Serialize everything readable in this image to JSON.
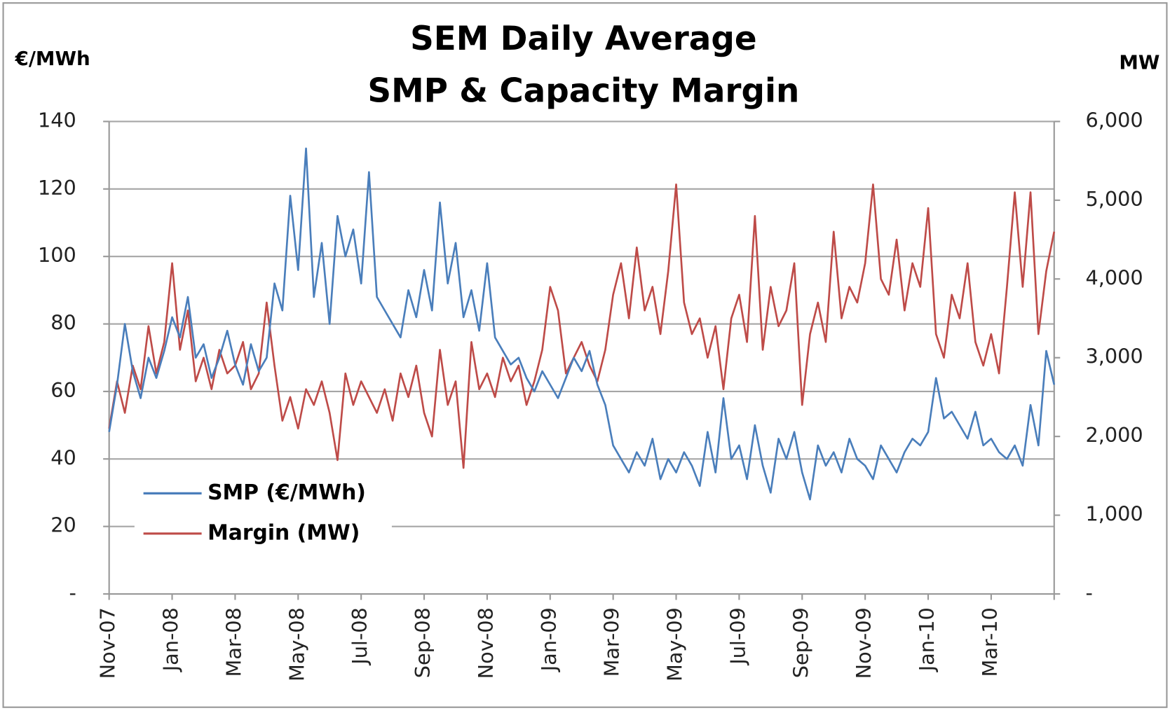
{
  "chart_data": {
    "type": "line",
    "title": [
      "SEM Daily Average",
      "SMP & Capacity Margin"
    ],
    "y_label": "€/MWh",
    "y2_label": "MW",
    "categories": [
      "Nov-07",
      null,
      null,
      null,
      null,
      null,
      null,
      null,
      "Jan-08",
      null,
      null,
      null,
      null,
      null,
      null,
      null,
      "Mar-08",
      null,
      null,
      null,
      null,
      null,
      null,
      null,
      "May-08",
      null,
      null,
      null,
      null,
      null,
      null,
      null,
      "Jul-08",
      null,
      null,
      null,
      null,
      null,
      null,
      null,
      "Sep-08",
      null,
      null,
      null,
      null,
      null,
      null,
      null,
      "Nov-08",
      null,
      null,
      null,
      null,
      null,
      null,
      null,
      "Jan-09",
      null,
      null,
      null,
      null,
      null,
      null,
      null,
      "Mar-09",
      null,
      null,
      null,
      null,
      null,
      null,
      null,
      "May-09",
      null,
      null,
      null,
      null,
      null,
      null,
      null,
      "Jul-09",
      null,
      null,
      null,
      null,
      null,
      null,
      null,
      "Sep-09",
      null,
      null,
      null,
      null,
      null,
      null,
      null,
      "Nov-09",
      null,
      null,
      null,
      null,
      null,
      null,
      null,
      "Jan-10",
      null,
      null,
      null,
      null,
      null,
      null,
      null,
      "Mar-10",
      null,
      null,
      null,
      null,
      null,
      null,
      null,
      null
    ],
    "series": [
      {
        "name": "SMP (€/MWh)",
        "color": "#4a7ebb",
        "values": [
          48,
          62,
          80,
          66,
          58,
          70,
          64,
          72,
          82,
          76,
          88,
          70,
          74,
          64,
          70,
          78,
          68,
          62,
          74,
          66,
          70,
          92,
          84,
          118,
          96,
          132,
          88,
          104,
          80,
          112,
          100,
          108,
          92,
          125,
          88,
          84,
          80,
          76,
          90,
          82,
          96,
          84,
          116,
          92,
          104,
          82,
          90,
          78,
          98,
          76,
          72,
          68,
          70,
          64,
          60,
          66,
          62,
          58,
          64,
          70,
          66,
          72,
          62,
          56,
          44,
          40,
          36,
          42,
          38,
          46,
          34,
          40,
          36,
          42,
          38,
          32,
          48,
          36,
          58,
          40,
          44,
          34,
          50,
          38,
          30,
          46,
          40,
          48,
          36,
          28,
          44,
          38,
          42,
          36,
          46,
          40,
          38,
          34,
          44,
          40,
          36,
          42,
          46,
          44,
          48,
          64,
          52,
          54,
          50,
          46,
          54,
          44,
          46,
          42,
          40,
          44,
          38,
          56,
          44,
          72,
          62
        ]
      },
      {
        "name": "Margin (MW)",
        "color": "#be4b48",
        "axis": "y2",
        "values": [
          2100,
          2700,
          2300,
          2900,
          2600,
          3400,
          2800,
          3200,
          4200,
          3100,
          3600,
          2700,
          3000,
          2600,
          3100,
          2800,
          2900,
          3200,
          2600,
          2800,
          3700,
          2900,
          2200,
          2500,
          2100,
          2600,
          2400,
          2700,
          2300,
          1700,
          2800,
          2400,
          2700,
          2500,
          2300,
          2600,
          2200,
          2800,
          2500,
          2900,
          2300,
          2000,
          3100,
          2400,
          2700,
          1600,
          3200,
          2600,
          2800,
          2500,
          3000,
          2700,
          2900,
          2400,
          2700,
          3100,
          3900,
          3600,
          2800,
          3000,
          3200,
          2900,
          2700,
          3100,
          3800,
          4200,
          3500,
          4400,
          3600,
          3900,
          3300,
          4100,
          5200,
          3700,
          3300,
          3500,
          3000,
          3400,
          2600,
          3500,
          3800,
          3200,
          4800,
          3100,
          3900,
          3400,
          3600,
          4200,
          2400,
          3300,
          3700,
          3200,
          4600,
          3500,
          3900,
          3700,
          4200,
          5200,
          4000,
          3800,
          4500,
          3600,
          4200,
          3900,
          4900,
          3300,
          3000,
          3800,
          3500,
          4200,
          3200,
          2900,
          3300,
          2800,
          3900,
          5100,
          3900,
          5100,
          3300,
          4100,
          4600
        ]
      }
    ],
    "ylim": [
      0,
      140
    ],
    "yticks": [
      {
        "value": 0,
        "label": "-"
      },
      20,
      40,
      60,
      80,
      100,
      120,
      140
    ],
    "y2lim": [
      0,
      6000
    ],
    "y2ticks": [
      {
        "value": 0,
        "label": "-"
      },
      {
        "value": 1000,
        "label": "1,000"
      },
      {
        "value": 2000,
        "label": "2,000"
      },
      {
        "value": 3000,
        "label": "3,000"
      },
      {
        "value": 4000,
        "label": "4,000"
      },
      {
        "value": 5000,
        "label": "5,000"
      },
      {
        "value": 6000,
        "label": "6,000"
      }
    ],
    "grid": true,
    "legend": "lower left"
  }
}
